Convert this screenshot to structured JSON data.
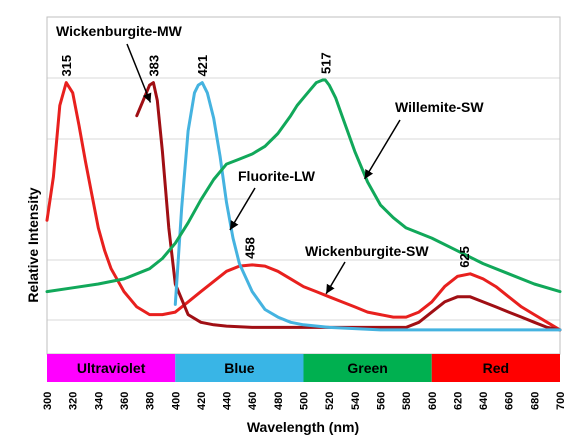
{
  "chart_data": {
    "type": "line",
    "xlabel": "Wavelength (nm)",
    "ylabel": "Relative Intensity",
    "xlim": [
      300,
      700
    ],
    "xticks": [
      "300",
      "320",
      "340",
      "360",
      "380",
      "400",
      "420",
      "440",
      "460",
      "480",
      "500",
      "520",
      "540",
      "560",
      "580",
      "600",
      "620",
      "640",
      "660",
      "680",
      "700"
    ],
    "grid": "horizontal",
    "bands": [
      {
        "label": "Ultraviolet",
        "from": 300,
        "to": 400,
        "color": "#ff00ff"
      },
      {
        "label": "Blue",
        "from": 400,
        "to": 500,
        "color": "#39b5e6"
      },
      {
        "label": "Green",
        "from": 500,
        "to": 600,
        "color": "#00b050"
      },
      {
        "label": "Red",
        "from": 600,
        "to": 700,
        "color": "#ff0000"
      }
    ],
    "series": [
      {
        "name": "Wickenburgite-SW",
        "color": "#e8201e",
        "x": [
          300,
          305,
          310,
          315,
          320,
          325,
          330,
          335,
          340,
          345,
          350,
          360,
          370,
          380,
          390,
          400,
          410,
          420,
          430,
          440,
          450,
          460,
          470,
          480,
          490,
          500,
          510,
          520,
          530,
          540,
          550,
          560,
          570,
          580,
          590,
          600,
          610,
          620,
          630,
          640,
          650,
          660,
          670,
          680,
          690,
          700
        ],
        "y": [
          0.45,
          0.62,
          0.9,
          0.99,
          0.95,
          0.82,
          0.68,
          0.55,
          0.42,
          0.33,
          0.26,
          0.17,
          0.11,
          0.08,
          0.08,
          0.09,
          0.13,
          0.17,
          0.21,
          0.25,
          0.27,
          0.275,
          0.27,
          0.25,
          0.22,
          0.19,
          0.17,
          0.15,
          0.13,
          0.11,
          0.09,
          0.08,
          0.07,
          0.07,
          0.09,
          0.13,
          0.19,
          0.23,
          0.24,
          0.22,
          0.19,
          0.15,
          0.11,
          0.08,
          0.05,
          0.02
        ]
      },
      {
        "name": "Wickenburgite-MW",
        "color": "#a00f14",
        "x": [
          370,
          375,
          380,
          383,
          386,
          390,
          395,
          400,
          410,
          420,
          430,
          440,
          460,
          480,
          500,
          520,
          540,
          560,
          580,
          590,
          600,
          610,
          620,
          630,
          640,
          650,
          660,
          670,
          680,
          690,
          700
        ],
        "y": [
          0.86,
          0.92,
          0.98,
          0.99,
          0.92,
          0.72,
          0.42,
          0.2,
          0.08,
          0.05,
          0.04,
          0.035,
          0.03,
          0.03,
          0.03,
          0.03,
          0.03,
          0.03,
          0.03,
          0.05,
          0.09,
          0.13,
          0.15,
          0.15,
          0.13,
          0.11,
          0.09,
          0.07,
          0.05,
          0.03,
          0.02
        ]
      },
      {
        "name": "Fluorite-LW",
        "color": "#45b3e0",
        "x": [
          400,
          405,
          410,
          415,
          418,
          421,
          425,
          430,
          435,
          440,
          445,
          450,
          460,
          470,
          480,
          490,
          500,
          520,
          540,
          560,
          580,
          600,
          620,
          640,
          660,
          680,
          700
        ],
        "y": [
          0.12,
          0.5,
          0.8,
          0.95,
          0.98,
          0.99,
          0.95,
          0.85,
          0.7,
          0.52,
          0.38,
          0.28,
          0.17,
          0.1,
          0.07,
          0.05,
          0.04,
          0.03,
          0.025,
          0.02,
          0.02,
          0.02,
          0.02,
          0.02,
          0.02,
          0.02,
          0.02
        ]
      },
      {
        "name": "Willemite-SW",
        "color": "#11a85a",
        "x": [
          300,
          320,
          340,
          360,
          380,
          390,
          400,
          410,
          420,
          430,
          440,
          450,
          460,
          470,
          480,
          490,
          495,
          500,
          505,
          510,
          515,
          517,
          520,
          525,
          530,
          540,
          550,
          560,
          570,
          580,
          600,
          620,
          640,
          660,
          680,
          700
        ],
        "y": [
          0.17,
          0.185,
          0.2,
          0.22,
          0.26,
          0.3,
          0.36,
          0.44,
          0.53,
          0.61,
          0.67,
          0.69,
          0.71,
          0.74,
          0.79,
          0.86,
          0.9,
          0.93,
          0.96,
          0.99,
          1.0,
          1.0,
          0.98,
          0.93,
          0.86,
          0.72,
          0.6,
          0.51,
          0.46,
          0.42,
          0.38,
          0.33,
          0.28,
          0.24,
          0.2,
          0.17
        ]
      }
    ],
    "peak_labels": [
      {
        "text": "315",
        "x": 315,
        "y": 0.99
      },
      {
        "text": "383",
        "x": 383,
        "y": 0.99
      },
      {
        "text": "421",
        "x": 421,
        "y": 0.99
      },
      {
        "text": "517",
        "x": 517,
        "y": 1.0
      },
      {
        "text": "458",
        "x": 458,
        "y": 0.275
      },
      {
        "text": "625",
        "x": 625,
        "y": 0.24
      }
    ],
    "callouts": [
      {
        "text": "Wickenburgite-MW",
        "color": "#000000",
        "target_x": 383,
        "target_y": 0.9
      },
      {
        "text": "Willemite-SW",
        "color": "#000000",
        "target_x": 550,
        "target_y": 0.6
      },
      {
        "text": "Fluorite-LW",
        "color": "#000000",
        "target_x": 445,
        "target_y": 0.4
      },
      {
        "text": "Wickenburgite-SW",
        "color": "#000000",
        "target_x": 520,
        "target_y": 0.15
      }
    ]
  }
}
